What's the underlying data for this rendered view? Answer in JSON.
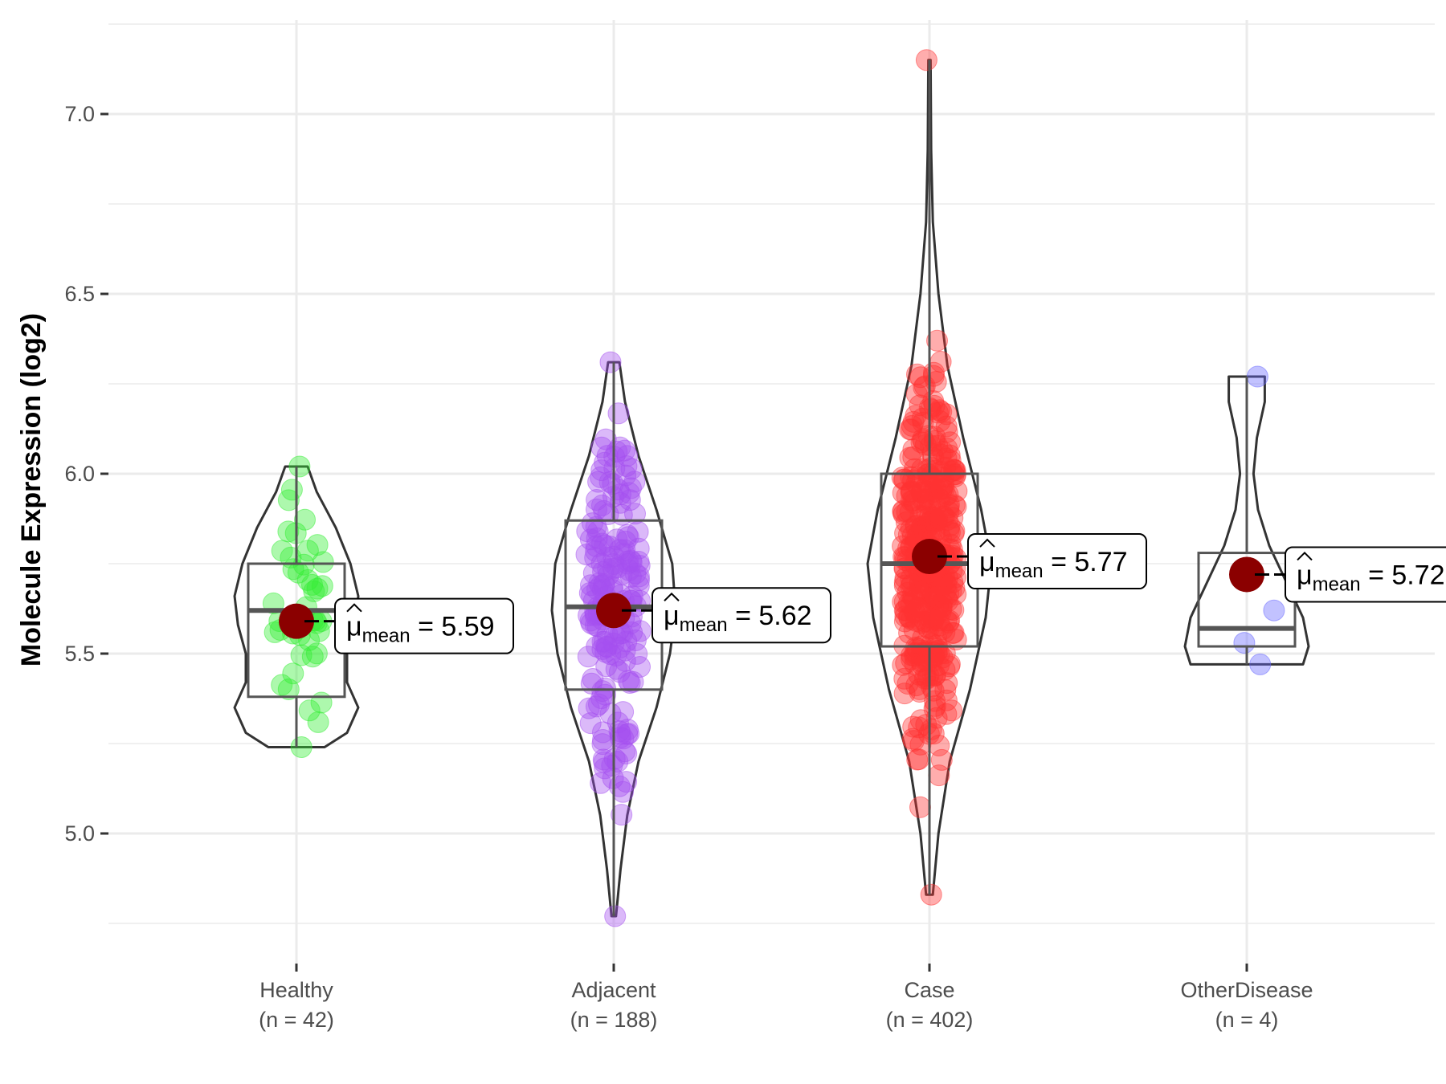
{
  "chart_data": {
    "type": "violin-box-jitter",
    "title": "",
    "xlabel": "",
    "ylabel": "Molecule Expression (log2)",
    "ylim": [
      4.72,
      7.24
    ],
    "y_ticks": [
      5.0,
      5.5,
      6.0,
      6.5,
      7.0
    ],
    "y_tick_labels": [
      "5.0",
      "5.5",
      "6.0",
      "6.5",
      "7.0"
    ],
    "grid": true,
    "legend": "none",
    "groups": [
      {
        "name": "Healthy",
        "n_label": "(n = 42)",
        "n": 42,
        "color": "#33ee33",
        "min": 5.24,
        "q1": 5.38,
        "median": 5.62,
        "q3": 5.75,
        "max": 6.02,
        "mean": 5.59,
        "mean_label": "5.59",
        "violin_profile": [
          [
            5.24,
            0.25
          ],
          [
            5.28,
            0.45
          ],
          [
            5.35,
            0.55
          ],
          [
            5.42,
            0.45
          ],
          [
            5.5,
            0.45
          ],
          [
            5.58,
            0.52
          ],
          [
            5.66,
            0.55
          ],
          [
            5.75,
            0.48
          ],
          [
            5.85,
            0.35
          ],
          [
            5.95,
            0.18
          ],
          [
            6.02,
            0.1
          ]
        ]
      },
      {
        "name": "Adjacent",
        "n_label": "(n = 188)",
        "n": 188,
        "color": "#a64ff0",
        "min": 4.77,
        "q1": 5.4,
        "median": 5.63,
        "q3": 5.87,
        "max": 6.31,
        "mean": 5.62,
        "mean_label": "5.62",
        "violin_profile": [
          [
            4.77,
            0.02
          ],
          [
            4.9,
            0.06
          ],
          [
            5.05,
            0.12
          ],
          [
            5.2,
            0.22
          ],
          [
            5.35,
            0.38
          ],
          [
            5.5,
            0.5
          ],
          [
            5.62,
            0.55
          ],
          [
            5.75,
            0.52
          ],
          [
            5.9,
            0.38
          ],
          [
            6.05,
            0.22
          ],
          [
            6.2,
            0.1
          ],
          [
            6.31,
            0.05
          ]
        ]
      },
      {
        "name": "Case",
        "n_label": "(n = 402)",
        "n": 402,
        "color": "#ff3333",
        "min": 4.83,
        "q1": 5.52,
        "median": 5.75,
        "q3": 6.0,
        "max": 7.15,
        "mean": 5.77,
        "mean_label": "5.77",
        "violin_profile": [
          [
            4.83,
            0.03
          ],
          [
            5.0,
            0.08
          ],
          [
            5.2,
            0.18
          ],
          [
            5.4,
            0.36
          ],
          [
            5.6,
            0.5
          ],
          [
            5.75,
            0.55
          ],
          [
            5.9,
            0.46
          ],
          [
            6.1,
            0.3
          ],
          [
            6.3,
            0.16
          ],
          [
            6.5,
            0.08
          ],
          [
            6.7,
            0.03
          ],
          [
            6.9,
            0.015
          ],
          [
            7.15,
            0.01
          ]
        ]
      },
      {
        "name": "OtherDisease",
        "n_label": "(n = 4)",
        "n": 4,
        "color": "#6666ff",
        "min": 5.47,
        "q1": 5.52,
        "median": 5.57,
        "q3": 5.78,
        "max": 6.27,
        "mean": 5.72,
        "mean_label": "5.72",
        "points": [
          6.27,
          5.62,
          5.53,
          5.47
        ],
        "violin_profile": [
          [
            5.47,
            0.5
          ],
          [
            5.52,
            0.55
          ],
          [
            5.6,
            0.5
          ],
          [
            5.7,
            0.35
          ],
          [
            5.8,
            0.2
          ],
          [
            5.9,
            0.1
          ],
          [
            6.0,
            0.06
          ],
          [
            6.1,
            0.09
          ],
          [
            6.2,
            0.16
          ],
          [
            6.27,
            0.16
          ]
        ]
      }
    ],
    "annotation_prefix": "μ",
    "annotation_subscript": "mean",
    "annotation_equals": "=",
    "mean_color": "#8b0000"
  }
}
